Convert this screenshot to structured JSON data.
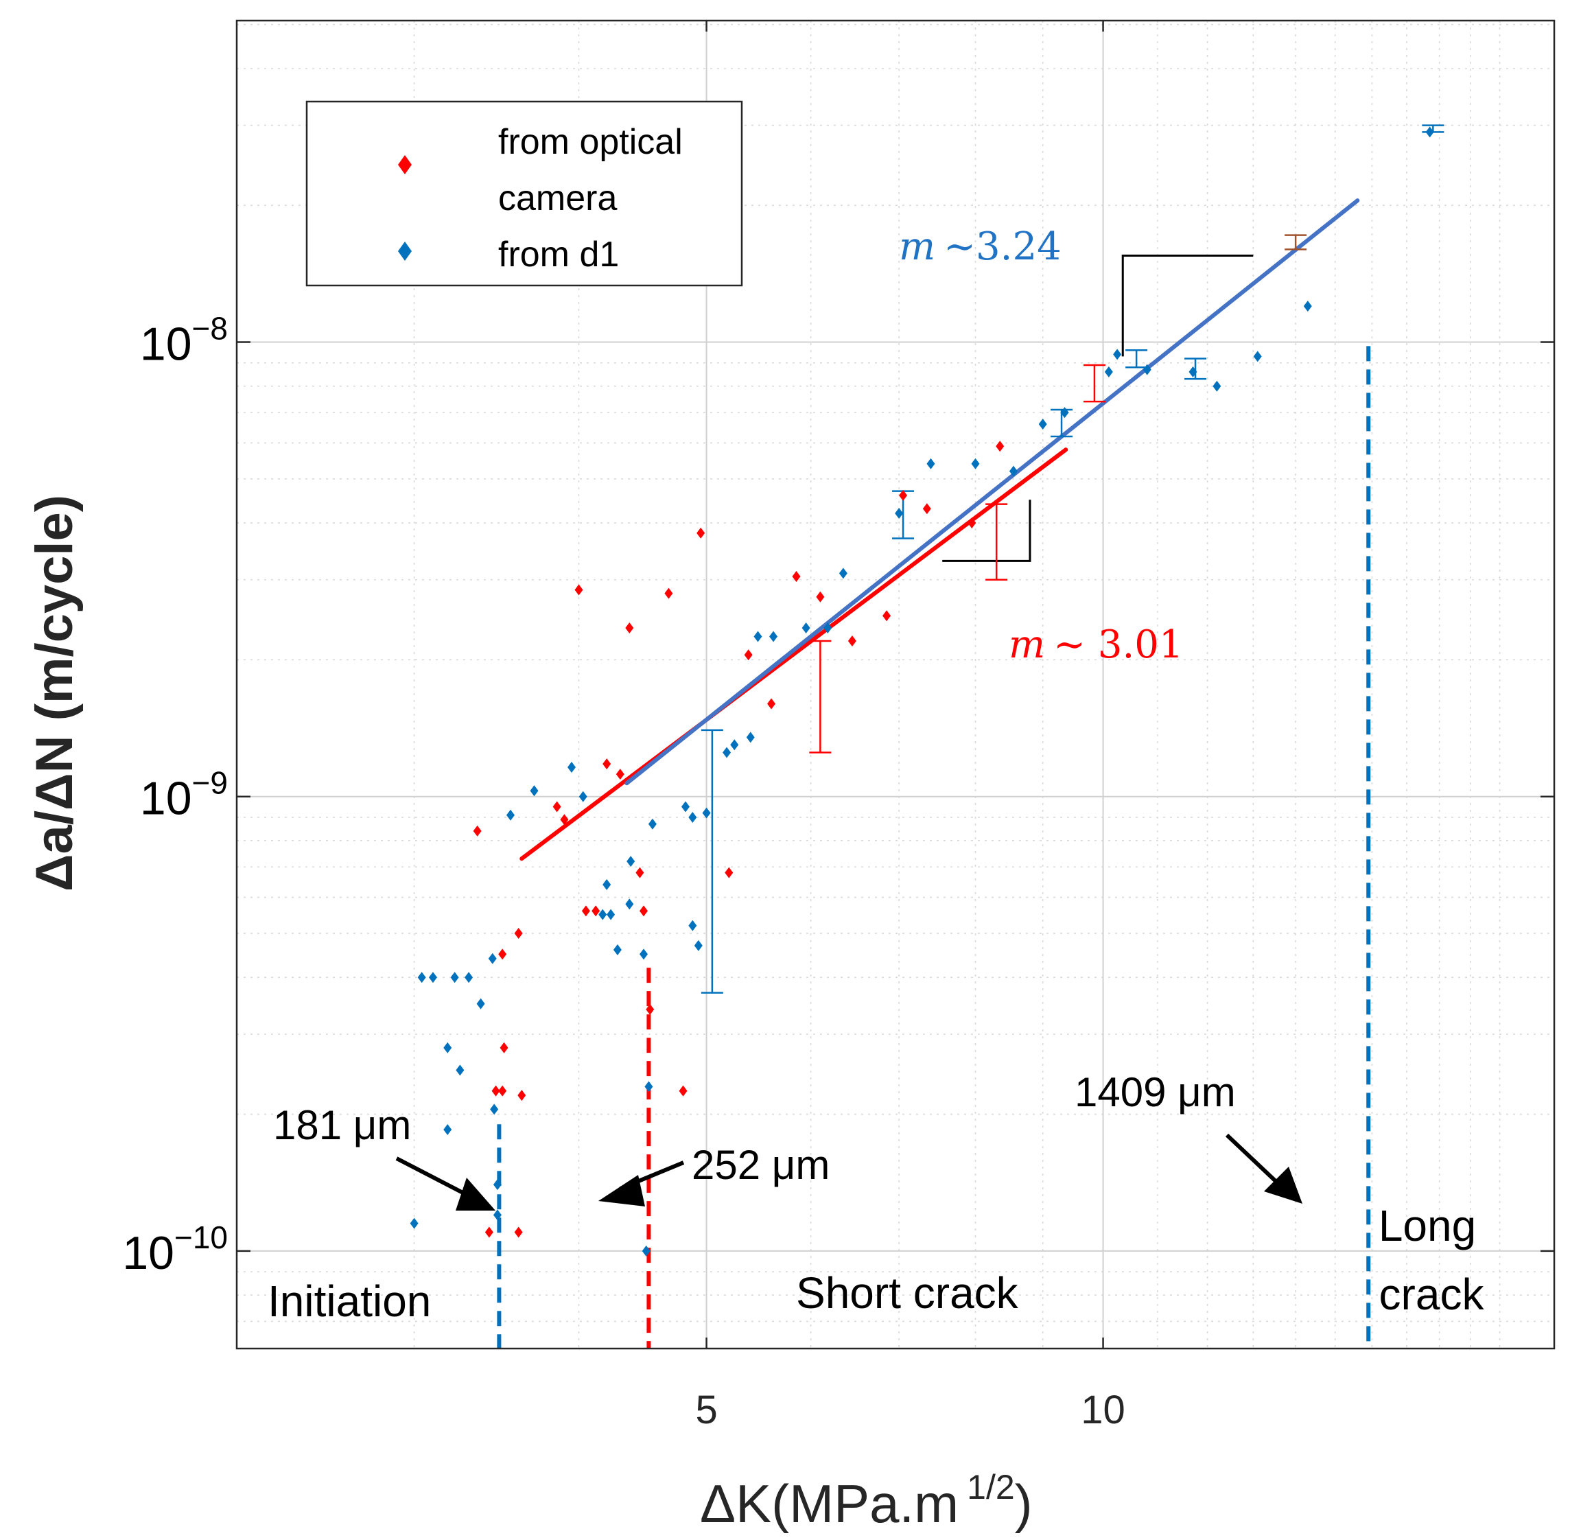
{
  "chart_data": {
    "type": "scatter",
    "x_scale": "log",
    "y_scale": "log",
    "xlim": [
      2.2,
      22
    ],
    "ylim": [
      6.1e-11,
      5.1e-08
    ],
    "xlabel": "ΔK(MPa.m",
    "xlabel_sup": "1/2",
    "xlabel_close": ")",
    "ylabel": "Δa/ΔN (m/cycle)",
    "x_ticks": [
      {
        "value": 5,
        "label": "5"
      },
      {
        "value": 10,
        "label": "10"
      }
    ],
    "y_ticks": [
      {
        "value": 1e-10,
        "base": "10",
        "exp": "−10"
      },
      {
        "value": 1e-09,
        "base": "10",
        "exp": "−9"
      },
      {
        "value": 1e-08,
        "base": "10",
        "exp": "−8"
      }
    ],
    "grid": true,
    "legend": {
      "position": "top-left",
      "entries": [
        {
          "label_line1": "from optical",
          "label_line2": "camera",
          "color": "#ff0000"
        },
        {
          "label_line1": "from d1",
          "label_line2": "",
          "color": "#0072bd"
        }
      ]
    },
    "series": [
      {
        "name": "from optical camera",
        "color": "#ff0000",
        "points": [
          [
            3.35,
            8.4e-10
          ],
          [
            3.5,
            4.5e-10
          ],
          [
            3.51,
            2.8e-10
          ],
          [
            3.46,
            2.25e-10
          ],
          [
            3.5,
            2.25e-10
          ],
          [
            3.42,
            1.1e-10
          ],
          [
            3.6,
            5e-10
          ],
          [
            3.62,
            2.2e-10
          ],
          [
            3.6,
            1.1e-10
          ],
          [
            3.85,
            9.5e-10
          ],
          [
            3.9,
            8.9e-10
          ],
          [
            4.0,
            2.85e-09
          ],
          [
            4.05,
            5.6e-10
          ],
          [
            4.12,
            5.6e-10
          ],
          [
            4.2,
            1.18e-09
          ],
          [
            4.3,
            1.12e-09
          ],
          [
            4.37,
            2.35e-09
          ],
          [
            4.45,
            6.8e-10
          ],
          [
            4.48,
            5.6e-10
          ],
          [
            4.53,
            3.4e-10
          ],
          [
            4.68,
            2.8e-09
          ],
          [
            4.8,
            2.25e-10
          ],
          [
            4.95,
            3.8e-09
          ],
          [
            5.2,
            6.8e-10
          ],
          [
            5.38,
            2.05e-09
          ],
          [
            5.6,
            1.6e-09
          ],
          [
            5.85,
            3.05e-09
          ],
          [
            6.1,
            2.75e-09
          ],
          [
            6.45,
            2.2e-09
          ],
          [
            6.85,
            2.5e-09
          ],
          [
            7.05,
            4.6e-09
          ],
          [
            7.35,
            4.3e-09
          ],
          [
            7.95,
            4e-09
          ],
          [
            8.35,
            5.9e-09
          ]
        ]
      },
      {
        "name": "from d1",
        "color": "#0072bd",
        "points": [
          [
            3.0,
            1.15e-10
          ],
          [
            3.04,
            4e-10
          ],
          [
            3.1,
            4e-10
          ],
          [
            3.18,
            2.8e-10
          ],
          [
            3.18,
            1.85e-10
          ],
          [
            3.22,
            4e-10
          ],
          [
            3.25,
            2.5e-10
          ],
          [
            3.3,
            4e-10
          ],
          [
            3.37,
            3.5e-10
          ],
          [
            3.44,
            4.4e-10
          ],
          [
            3.45,
            2.05e-10
          ],
          [
            3.47,
            1.4e-10
          ],
          [
            3.47,
            1.2e-10
          ],
          [
            3.55,
            9.1e-10
          ],
          [
            3.7,
            1.03e-09
          ],
          [
            3.95,
            1.16e-09
          ],
          [
            4.03,
            1e-09
          ],
          [
            4.17,
            5.5e-10
          ],
          [
            4.2,
            6.4e-10
          ],
          [
            4.23,
            5.5e-10
          ],
          [
            4.28,
            4.6e-10
          ],
          [
            4.37,
            5.8e-10
          ],
          [
            4.38,
            7.2e-10
          ],
          [
            4.48,
            4.5e-10
          ],
          [
            4.5,
            1e-10
          ],
          [
            4.52,
            2.3e-10
          ],
          [
            4.55,
            8.7e-10
          ],
          [
            4.82,
            9.5e-10
          ],
          [
            4.88,
            9e-10
          ],
          [
            4.88,
            5.2e-10
          ],
          [
            4.93,
            4.7e-10
          ],
          [
            5.0,
            9.2e-10
          ],
          [
            5.18,
            1.25e-09
          ],
          [
            5.25,
            1.3e-09
          ],
          [
            5.4,
            1.35e-09
          ],
          [
            5.47,
            2.25e-09
          ],
          [
            5.62,
            2.25e-09
          ],
          [
            5.95,
            2.35e-09
          ],
          [
            6.18,
            2.35e-09
          ],
          [
            6.35,
            3.1e-09
          ],
          [
            7.0,
            4.2e-09
          ],
          [
            7.4,
            5.4e-09
          ],
          [
            8.0,
            5.4e-09
          ],
          [
            8.55,
            5.2e-09
          ],
          [
            9.0,
            6.6e-09
          ],
          [
            9.35,
            7e-09
          ],
          [
            10.1,
            8.6e-09
          ],
          [
            10.25,
            9.4e-09
          ],
          [
            10.8,
            8.7e-09
          ],
          [
            11.7,
            8.6e-09
          ],
          [
            12.2,
            8e-09
          ],
          [
            13.1,
            9.3e-09
          ],
          [
            14.3,
            1.2e-08
          ],
          [
            17.7,
            2.9e-08
          ]
        ]
      }
    ],
    "error_bars": [
      {
        "x": 5.05,
        "y_low": 3.7e-10,
        "y_high": 1.4e-09,
        "color": "#0072bd"
      },
      {
        "x": 6.1,
        "y_low": 1.25e-09,
        "y_high": 2.2e-09,
        "color": "#ff0000"
      },
      {
        "x": 7.05,
        "y_low": 3.7e-09,
        "y_high": 4.7e-09,
        "color": "#0072bd"
      },
      {
        "x": 8.3,
        "y_low": 3e-09,
        "y_high": 4.4e-09,
        "color": "#ff0000"
      },
      {
        "x": 9.3,
        "y_low": 6.2e-09,
        "y_high": 7.1e-09,
        "color": "#0072bd"
      },
      {
        "x": 9.85,
        "y_low": 7.4e-09,
        "y_high": 8.9e-09,
        "color": "#ff0000"
      },
      {
        "x": 10.6,
        "y_low": 8.8e-09,
        "y_high": 9.6e-09,
        "color": "#0072bd"
      },
      {
        "x": 11.75,
        "y_low": 8.3e-09,
        "y_high": 9.2e-09,
        "color": "#0072bd"
      },
      {
        "x": 14.0,
        "y_low": 1.6e-08,
        "y_high": 1.72e-08,
        "color": "#a0522d"
      },
      {
        "x": 17.8,
        "y_low": 2.9e-08,
        "y_high": 3e-08,
        "color": "#0072bd"
      }
    ],
    "fit_lines": [
      {
        "name": "red fit",
        "color": "#ff0000",
        "x1": 3.62,
        "y1": 7.3e-10,
        "x2": 9.37,
        "y2": 5.8e-09
      },
      {
        "name": "blue fit",
        "color": "#4472c4",
        "x1": 4.35,
        "y1": 1.07e-09,
        "x2": 15.6,
        "y2": 2.05e-08
      }
    ],
    "slope_triangles": [
      {
        "color": "#000000",
        "x_start": 7.55,
        "x_corner": 8.8,
        "y_corner": 3.3e-09,
        "y_end": 4.5e-09
      },
      {
        "color": "#000000",
        "x_corner": 10.35,
        "x_end": 13.0,
        "y_start": 9.3e-09,
        "y_corner": 1.55e-08
      }
    ],
    "vertical_markers": [
      {
        "x": 3.48,
        "y_top": 1.9e-10,
        "color": "#0072bd",
        "label": "181 μm"
      },
      {
        "x": 4.52,
        "y_top": 4.2e-10,
        "color": "#ff0000",
        "label": "252 μm"
      },
      {
        "x": 15.9,
        "y_top": 9.8e-09,
        "color": "#0072bd",
        "label": "1409 μm"
      }
    ],
    "annotations": {
      "slope_blue_sym": "m",
      "slope_blue_val": "∼3.24",
      "slope_red_sym": "m",
      "slope_red_val": "∼ 3.01",
      "region_initiation": "Initiation",
      "region_short": "Short crack",
      "region_long_1": "Long",
      "region_long_2": "crack",
      "label_181": "181 μm",
      "label_252": "252 μm",
      "label_1409": "1409 μm"
    }
  }
}
